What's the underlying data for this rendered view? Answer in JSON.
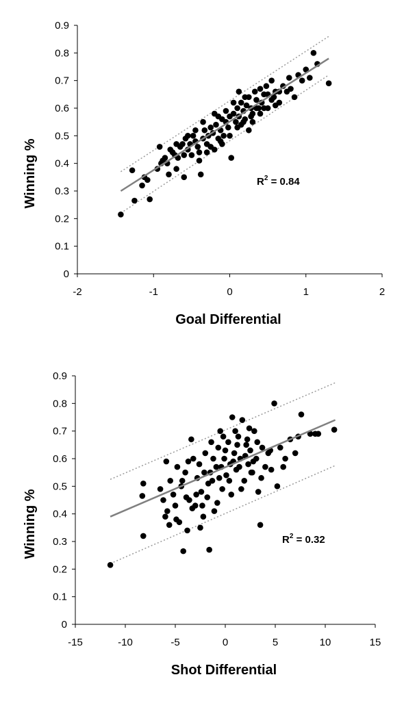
{
  "chart_data": [
    {
      "type": "scatter",
      "xlabel": "Goal Differential",
      "ylabel": "Winning %",
      "xlim": [
        -2,
        2
      ],
      "ylim": [
        0,
        0.9
      ],
      "xticks": [
        "-2",
        "-1",
        "0",
        "1",
        "2"
      ],
      "yticks": [
        "0",
        "0.1",
        "0.2",
        "0.3",
        "0.4",
        "0.5",
        "0.6",
        "0.7",
        "0.8",
        "0.9"
      ],
      "r2_label": "R",
      "r2_sup": "2",
      "r2_value": " = 0.84",
      "grid": false,
      "marker_color": "#000000",
      "fit_color": "#808080",
      "band_color": "#999999",
      "fit_line": {
        "x": [
          -1.43,
          1.3
        ],
        "y": [
          0.3,
          0.78
        ]
      },
      "band_upper": {
        "x": [
          -1.43,
          1.3
        ],
        "y": [
          0.37,
          0.86
        ]
      },
      "band_lower": {
        "x": [
          -1.43,
          1.3
        ],
        "y": [
          0.22,
          0.72
        ]
      },
      "points": [
        [
          -1.43,
          0.215
        ],
        [
          -1.28,
          0.375
        ],
        [
          -1.25,
          0.265
        ],
        [
          -1.15,
          0.32
        ],
        [
          -1.12,
          0.35
        ],
        [
          -1.05,
          0.27
        ],
        [
          -1.08,
          0.34
        ],
        [
          -0.95,
          0.38
        ],
        [
          -0.92,
          0.46
        ],
        [
          -0.88,
          0.41
        ],
        [
          -0.85,
          0.42
        ],
        [
          -0.82,
          0.4
        ],
        [
          -0.8,
          0.36
        ],
        [
          -0.78,
          0.45
        ],
        [
          -0.75,
          0.44
        ],
        [
          -0.72,
          0.43
        ],
        [
          -0.7,
          0.38
        ],
        [
          -0.68,
          0.42
        ],
        [
          -0.65,
          0.46
        ],
        [
          -0.62,
          0.47
        ],
        [
          -0.6,
          0.35
        ],
        [
          -0.58,
          0.49
        ],
        [
          -0.55,
          0.45
        ],
        [
          -0.52,
          0.47
        ],
        [
          -0.5,
          0.43
        ],
        [
          -0.48,
          0.5
        ],
        [
          -0.45,
          0.48
        ],
        [
          -0.42,
          0.46
        ],
        [
          -0.4,
          0.44
        ],
        [
          -0.38,
          0.36
        ],
        [
          -0.35,
          0.49
        ],
        [
          -0.33,
          0.52
        ],
        [
          -0.3,
          0.47
        ],
        [
          -0.28,
          0.5
        ],
        [
          -0.25,
          0.53
        ],
        [
          -0.22,
          0.51
        ],
        [
          -0.2,
          0.45
        ],
        [
          -0.18,
          0.54
        ],
        [
          -0.15,
          0.49
        ],
        [
          -0.12,
          0.52
        ],
        [
          -0.1,
          0.56
        ],
        [
          -0.08,
          0.5
        ],
        [
          -0.05,
          0.55
        ],
        [
          -0.02,
          0.53
        ],
        [
          0.0,
          0.57
        ],
        [
          0.02,
          0.42
        ],
        [
          0.05,
          0.58
        ],
        [
          0.08,
          0.55
        ],
        [
          0.1,
          0.6
        ],
        [
          0.12,
          0.57
        ],
        [
          0.15,
          0.62
        ],
        [
          0.18,
          0.59
        ],
        [
          0.2,
          0.56
        ],
        [
          0.22,
          0.61
        ],
        [
          0.25,
          0.64
        ],
        [
          0.28,
          0.6
        ],
        [
          0.3,
          0.58
        ],
        [
          0.33,
          0.66
        ],
        [
          0.35,
          0.63
        ],
        [
          0.38,
          0.6
        ],
        [
          0.4,
          0.67
        ],
        [
          0.42,
          0.62
        ],
        [
          0.45,
          0.65
        ],
        [
          0.48,
          0.68
        ],
        [
          0.5,
          0.6
        ],
        [
          0.55,
          0.7
        ],
        [
          0.58,
          0.64
        ],
        [
          0.6,
          0.66
        ],
        [
          0.65,
          0.62
        ],
        [
          0.7,
          0.68
        ],
        [
          0.75,
          0.66
        ],
        [
          0.78,
          0.71
        ],
        [
          0.85,
          0.64
        ],
        [
          0.9,
          0.72
        ],
        [
          0.95,
          0.7
        ],
        [
          1.0,
          0.74
        ],
        [
          1.05,
          0.71
        ],
        [
          1.1,
          0.8
        ],
        [
          1.15,
          0.76
        ],
        [
          1.3,
          0.69
        ],
        [
          -0.55,
          0.5
        ],
        [
          -0.45,
          0.52
        ],
        [
          -0.3,
          0.44
        ],
        [
          -0.2,
          0.58
        ],
        [
          -0.1,
          0.47
        ],
        [
          0.0,
          0.5
        ],
        [
          0.1,
          0.53
        ],
        [
          0.2,
          0.64
        ],
        [
          0.3,
          0.55
        ],
        [
          0.4,
          0.58
        ],
        [
          0.5,
          0.65
        ],
        [
          0.6,
          0.61
        ],
        [
          -0.35,
          0.55
        ],
        [
          -0.15,
          0.57
        ],
        [
          0.05,
          0.62
        ],
        [
          0.25,
          0.52
        ],
        [
          0.45,
          0.6
        ],
        [
          -0.6,
          0.43
        ],
        [
          -0.25,
          0.46
        ],
        [
          0.15,
          0.54
        ],
        [
          0.35,
          0.6
        ],
        [
          0.55,
          0.63
        ],
        [
          -0.4,
          0.41
        ],
        [
          -0.05,
          0.59
        ],
        [
          0.12,
          0.66
        ],
        [
          0.28,
          0.57
        ],
        [
          -0.9,
          0.4
        ],
        [
          -0.7,
          0.47
        ],
        [
          0.8,
          0.67
        ],
        [
          0.65,
          0.66
        ],
        [
          -0.12,
          0.48
        ],
        [
          0.18,
          0.55
        ]
      ]
    },
    {
      "type": "scatter",
      "xlabel": "Shot Differential",
      "ylabel": "Winning %",
      "xlim": [
        -15,
        15
      ],
      "ylim": [
        0,
        0.9
      ],
      "xticks": [
        "-15",
        "-10",
        "-5",
        "0",
        "5",
        "10",
        "15"
      ],
      "yticks": [
        "0",
        "0.1",
        "0.2",
        "0.3",
        "0.4",
        "0.5",
        "0.6",
        "0.7",
        "0.8",
        "0.9"
      ],
      "r2_label": "R",
      "r2_sup": "2",
      "r2_value": " = 0.32",
      "grid": false,
      "marker_color": "#000000",
      "fit_color": "#808080",
      "band_color": "#999999",
      "fit_line": {
        "x": [
          -11.5,
          11
        ],
        "y": [
          0.39,
          0.74
        ]
      },
      "band_upper": {
        "x": [
          -11.5,
          11
        ],
        "y": [
          0.525,
          0.875
        ]
      },
      "band_lower": {
        "x": [
          -11.5,
          11
        ],
        "y": [
          0.22,
          0.575
        ]
      },
      "points": [
        [
          -11.5,
          0.215
        ],
        [
          -8.2,
          0.32
        ],
        [
          -8.3,
          0.465
        ],
        [
          -8.2,
          0.51
        ],
        [
          -6.2,
          0.45
        ],
        [
          -6.0,
          0.39
        ],
        [
          -5.9,
          0.59
        ],
        [
          -5.8,
          0.41
        ],
        [
          -5.5,
          0.52
        ],
        [
          -5.2,
          0.47
        ],
        [
          -5.0,
          0.43
        ],
        [
          -4.8,
          0.57
        ],
        [
          -4.6,
          0.37
        ],
        [
          -4.4,
          0.5
        ],
        [
          -4.2,
          0.265
        ],
        [
          -4.0,
          0.55
        ],
        [
          -3.8,
          0.34
        ],
        [
          -3.6,
          0.45
        ],
        [
          -3.4,
          0.67
        ],
        [
          -3.2,
          0.6
        ],
        [
          -3.0,
          0.43
        ],
        [
          -2.8,
          0.53
        ],
        [
          -2.6,
          0.58
        ],
        [
          -2.4,
          0.48
        ],
        [
          -2.2,
          0.39
        ],
        [
          -2.0,
          0.62
        ],
        [
          -1.8,
          0.46
        ],
        [
          -1.6,
          0.27
        ],
        [
          -1.5,
          0.55
        ],
        [
          -1.3,
          0.52
        ],
        [
          -1.1,
          0.41
        ],
        [
          -0.9,
          0.57
        ],
        [
          -0.7,
          0.64
        ],
        [
          -0.5,
          0.7
        ],
        [
          -0.3,
          0.49
        ],
        [
          -0.1,
          0.6
        ],
        [
          0.1,
          0.54
        ],
        [
          0.3,
          0.66
        ],
        [
          0.5,
          0.58
        ],
        [
          0.7,
          0.75
        ],
        [
          0.9,
          0.62
        ],
        [
          1.1,
          0.56
        ],
        [
          1.3,
          0.68
        ],
        [
          1.5,
          0.6
        ],
        [
          1.7,
          0.74
        ],
        [
          1.9,
          0.52
        ],
        [
          2.1,
          0.65
        ],
        [
          2.3,
          0.58
        ],
        [
          2.5,
          0.63
        ],
        [
          2.7,
          0.55
        ],
        [
          2.9,
          0.7
        ],
        [
          3.1,
          0.6
        ],
        [
          3.3,
          0.48
        ],
        [
          3.5,
          0.36
        ],
        [
          3.7,
          0.64
        ],
        [
          4.0,
          0.57
        ],
        [
          4.3,
          0.62
        ],
        [
          4.6,
          0.56
        ],
        [
          4.9,
          0.8
        ],
        [
          5.2,
          0.5
        ],
        [
          5.5,
          0.64
        ],
        [
          6.0,
          0.6
        ],
        [
          6.5,
          0.67
        ],
        [
          7.0,
          0.62
        ],
        [
          7.3,
          0.68
        ],
        [
          7.6,
          0.76
        ],
        [
          8.5,
          0.69
        ],
        [
          9.0,
          0.69
        ],
        [
          9.3,
          0.69
        ],
        [
          10.9,
          0.705
        ],
        [
          -6.5,
          0.49
        ],
        [
          -5.6,
          0.36
        ],
        [
          -4.9,
          0.38
        ],
        [
          -4.3,
          0.52
        ],
        [
          -3.7,
          0.59
        ],
        [
          -3.3,
          0.42
        ],
        [
          -2.9,
          0.47
        ],
        [
          -2.5,
          0.35
        ],
        [
          -2.1,
          0.55
        ],
        [
          -1.7,
          0.51
        ],
        [
          -1.2,
          0.6
        ],
        [
          -0.8,
          0.44
        ],
        [
          -0.4,
          0.57
        ],
        [
          0.0,
          0.63
        ],
        [
          0.4,
          0.52
        ],
        [
          0.8,
          0.59
        ],
        [
          1.2,
          0.65
        ],
        [
          1.6,
          0.49
        ],
        [
          2.0,
          0.61
        ],
        [
          2.4,
          0.71
        ],
        [
          2.8,
          0.59
        ],
        [
          3.2,
          0.66
        ],
        [
          3.6,
          0.53
        ],
        [
          -1.4,
          0.66
        ],
        [
          -0.2,
          0.68
        ],
        [
          1.0,
          0.7
        ],
        [
          2.2,
          0.67
        ],
        [
          0.6,
          0.47
        ],
        [
          -2.3,
          0.43
        ],
        [
          -3.9,
          0.46
        ],
        [
          4.5,
          0.63
        ],
        [
          5.8,
          0.57
        ],
        [
          1.4,
          0.57
        ],
        [
          -0.6,
          0.53
        ],
        [
          2.6,
          0.55
        ]
      ]
    }
  ]
}
